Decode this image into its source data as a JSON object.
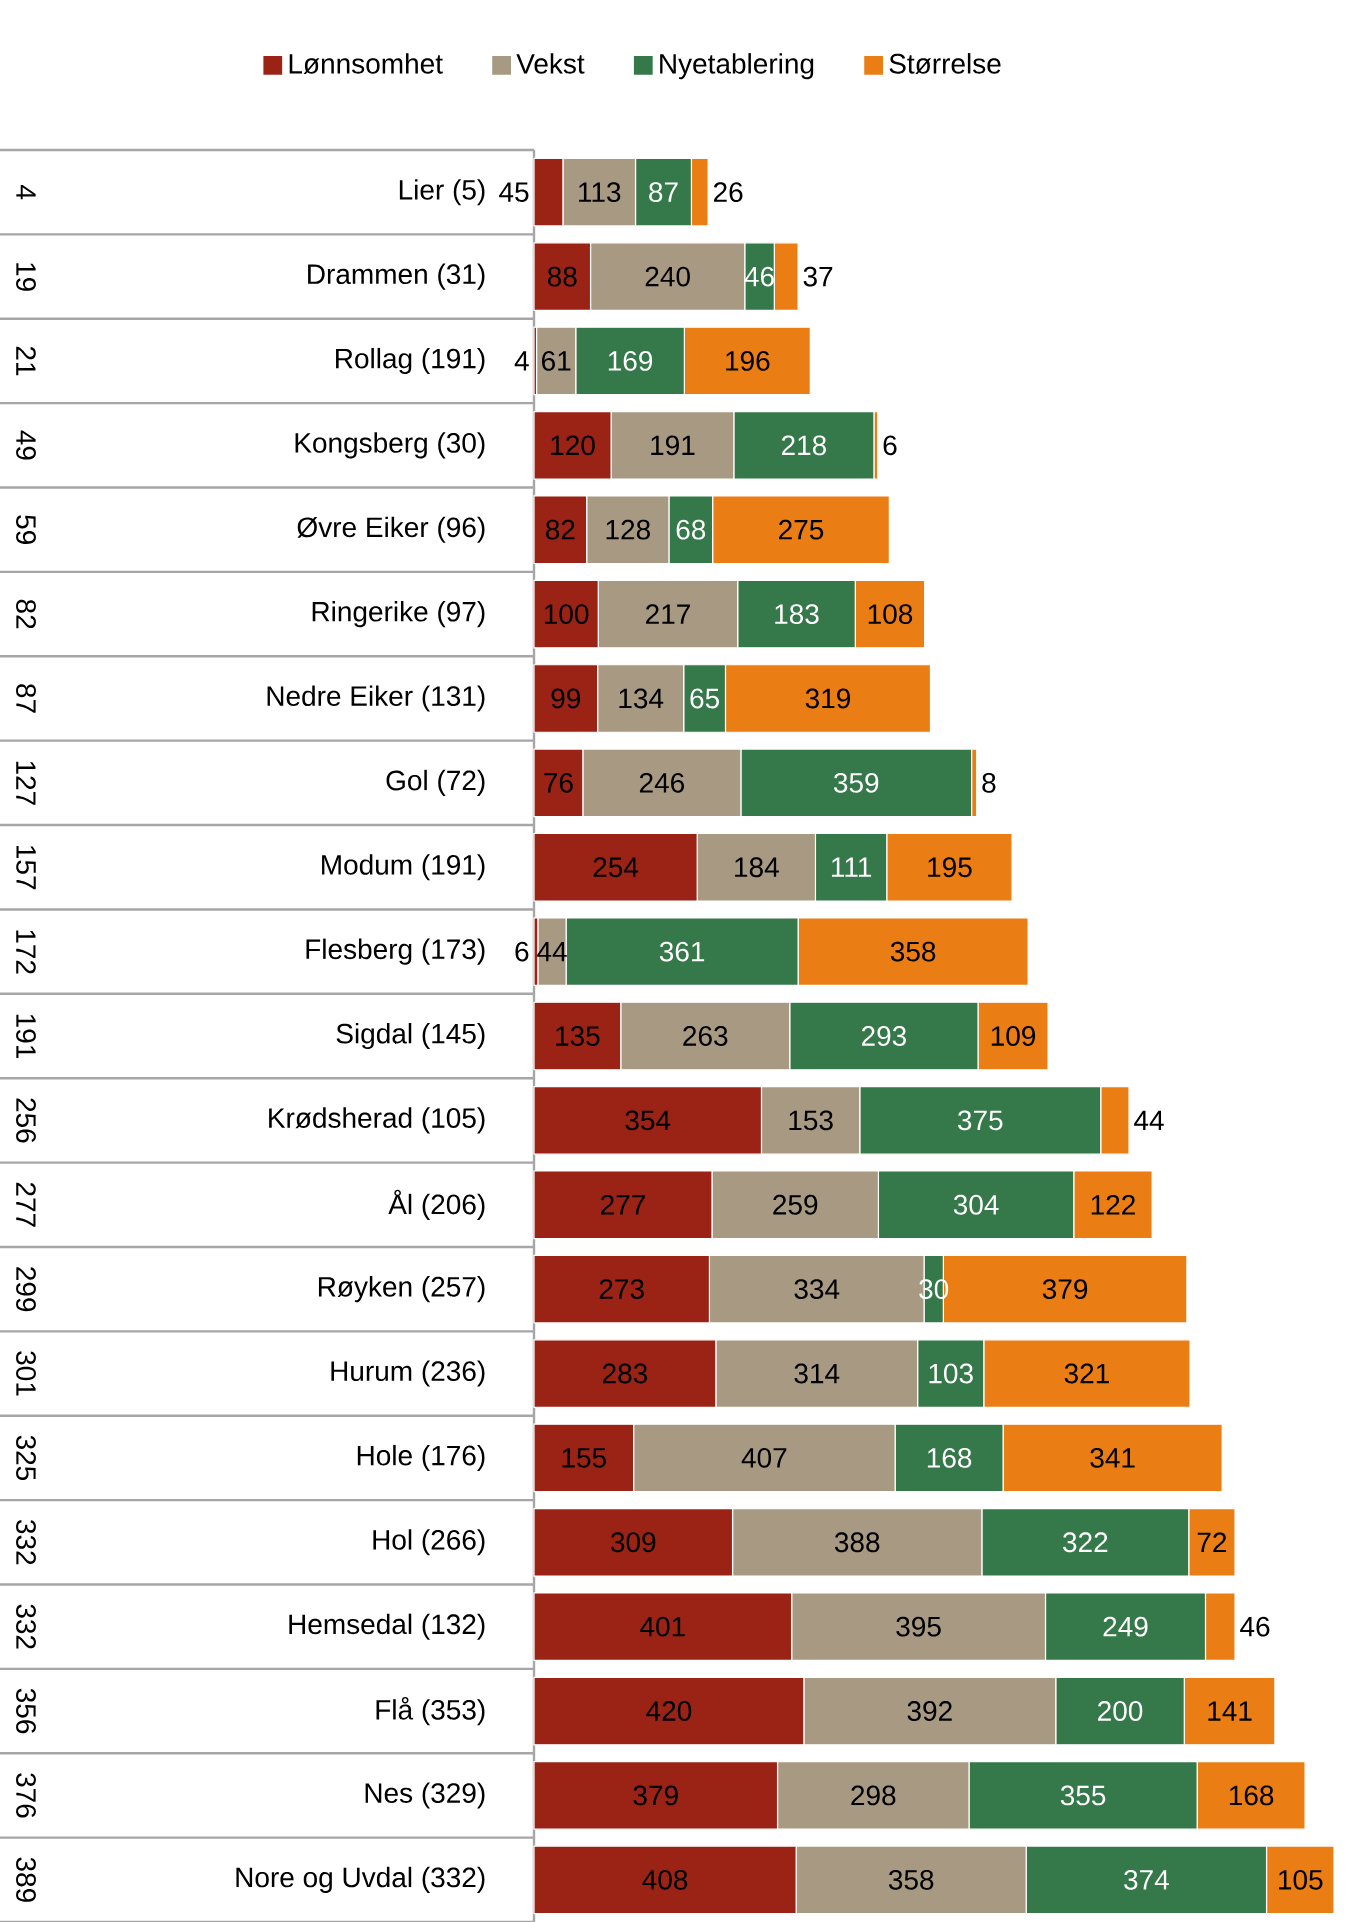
{
  "chart_data": {
    "type": "bar",
    "orientation": "horizontal",
    "stacked": true,
    "data_labels": true,
    "legend": "top",
    "categories": [
      "Lier (5)",
      "Drammen (31)",
      "Rollag (191)",
      "Kongsberg (30)",
      "Øvre Eiker (96)",
      "Ringerike (97)",
      "Nedre Eiker (131)",
      "Gol (72)",
      "Modum (191)",
      "Flesberg (173)",
      "Sigdal (145)",
      "Krødsherad (105)",
      "Ål (206)",
      "Røyken (257)",
      "Hurum (236)",
      "Hole (176)",
      "Hol (266)",
      "Hemsedal (132)",
      "Flå (353)",
      "Nes (329)",
      "Nore og Uvdal (332)"
    ],
    "annotations": [
      "4",
      "19",
      "21",
      "49",
      "59",
      "82",
      "87",
      "127",
      "157",
      "172",
      "191",
      "256",
      "277",
      "299",
      "301",
      "325",
      "332",
      "332",
      "356",
      "376",
      "389"
    ],
    "series": [
      {
        "name": "Lønnsomhet",
        "color": "#9b2316",
        "values": [
          45,
          88,
          4,
          120,
          82,
          100,
          99,
          76,
          254,
          6,
          135,
          354,
          277,
          273,
          283,
          155,
          309,
          401,
          420,
          379,
          408
        ]
      },
      {
        "name": "Vekst",
        "color": "#a89a82",
        "values": [
          113,
          240,
          61,
          191,
          128,
          217,
          134,
          246,
          184,
          44,
          263,
          153,
          259,
          334,
          314,
          407,
          388,
          395,
          392,
          298,
          358
        ]
      },
      {
        "name": "Nyetablering",
        "color": "#35784a",
        "values": [
          87,
          46,
          169,
          218,
          68,
          183,
          65,
          359,
          111,
          361,
          293,
          375,
          304,
          30,
          103,
          168,
          322,
          249,
          200,
          355,
          374
        ]
      },
      {
        "name": "Størrelse",
        "color": "#ea7d14",
        "values": [
          26,
          37,
          196,
          6,
          275,
          108,
          319,
          8,
          195,
          358,
          109,
          44,
          122,
          379,
          321,
          341,
          72,
          46,
          141,
          168,
          105
        ]
      }
    ]
  }
}
